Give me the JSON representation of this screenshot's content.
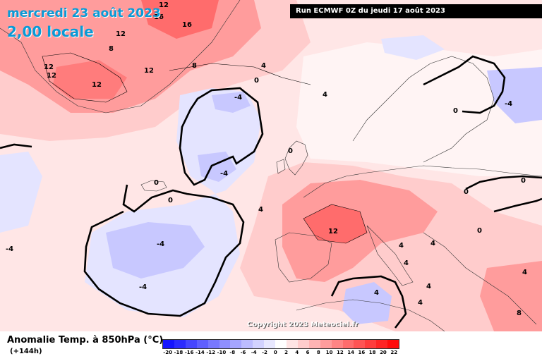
{
  "title": {
    "date": "mercredi 23 août 2023",
    "time": "2,00 locale"
  },
  "run_label": "Run ECMWF 0Z du jeudi 17 août 2023",
  "copyright": "Copyright 2023 Meteociel.fr",
  "variable": {
    "title": "Anomalie Temp. à 850hPa (°C)",
    "lead": "(+144h)"
  },
  "legend": {
    "ticks": [
      "-20",
      "-18",
      "-16",
      "-14",
      "-12",
      "-10",
      "-8",
      "-6",
      "-4",
      "-2",
      "0",
      "2",
      "4",
      "6",
      "8",
      "10",
      "12",
      "14",
      "16",
      "18",
      "20",
      "22"
    ],
    "colors": [
      "#1414ff",
      "#2b2bff",
      "#4646ff",
      "#5f5fff",
      "#7878ff",
      "#8f8fff",
      "#a5a5ff",
      "#bcbcff",
      "#d2d2ff",
      "#e8e8ff",
      "#ffffff",
      "#ffe4e4",
      "#ffcccc",
      "#ffb4b4",
      "#ff9c9c",
      "#ff8484",
      "#ff6c6c",
      "#ff5454",
      "#ff3c3c",
      "#ff2424",
      "#ff0c0c"
    ]
  },
  "contour_labels": [
    {
      "text": "12"
    },
    {
      "text": "16"
    },
    {
      "text": "16"
    },
    {
      "text": "12"
    },
    {
      "text": "8"
    },
    {
      "text": "12"
    },
    {
      "text": "12"
    },
    {
      "text": "12"
    },
    {
      "text": "12"
    },
    {
      "text": "8"
    },
    {
      "text": "4"
    },
    {
      "text": "0"
    },
    {
      "text": "4"
    },
    {
      "text": "-4"
    },
    {
      "text": "-4"
    },
    {
      "text": "0"
    },
    {
      "text": "0"
    },
    {
      "text": "0"
    },
    {
      "text": "-4"
    },
    {
      "text": "-4"
    },
    {
      "text": "4"
    },
    {
      "text": "12"
    },
    {
      "text": "4"
    },
    {
      "text": "4"
    },
    {
      "text": "4"
    },
    {
      "text": "4"
    },
    {
      "text": "0"
    },
    {
      "text": "-4"
    },
    {
      "text": "0"
    },
    {
      "text": "0"
    },
    {
      "text": "4"
    },
    {
      "text": "8"
    },
    {
      "text": "0"
    },
    {
      "text": "4"
    },
    {
      "text": "4"
    },
    {
      "text": "-4"
    }
  ],
  "colors": {
    "warm_strong": "#ff6c6c",
    "warm_mid": "#ff9c9c",
    "warm_light": "#ffcccc",
    "warm_faint": "#ffe6e6",
    "cool_light": "#e4e4ff",
    "cool_mid": "#c8c8ff",
    "cool_strong": "#aeaeff",
    "title_blue": "#0a9ad6"
  }
}
